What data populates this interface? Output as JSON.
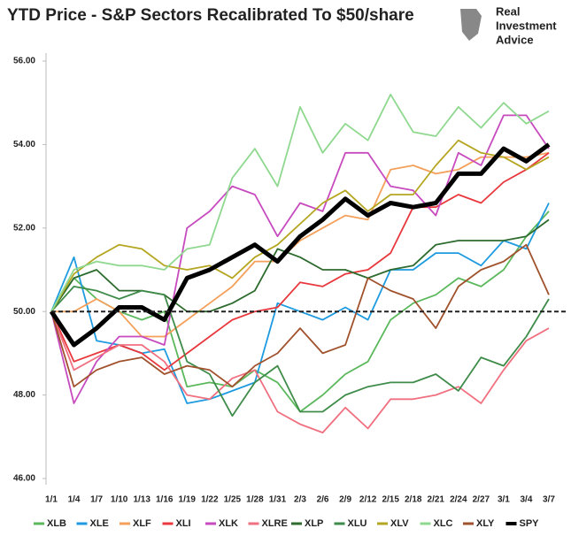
{
  "chart_data": {
    "type": "line",
    "title": "YTD Price - S&P Sectors Recalibrated To $50/share",
    "logo_text": [
      "Real",
      "Investment",
      "Advice"
    ],
    "categories": [
      "1/1",
      "1/4",
      "1/7",
      "1/10",
      "1/13",
      "1/16",
      "1/19",
      "1/22",
      "1/25",
      "1/28",
      "1/31",
      "2/3",
      "2/6",
      "2/9",
      "2/12",
      "2/15",
      "2/18",
      "2/21",
      "2/24",
      "2/27",
      "3/1",
      "3/4",
      "3/7"
    ],
    "ylim": [
      46,
      56
    ],
    "yticks": [
      {
        "value": 46,
        "label": "46.00"
      },
      {
        "value": 48,
        "label": "48.00"
      },
      {
        "value": 50,
        "label": "50.00"
      },
      {
        "value": 52,
        "label": "52.00"
      },
      {
        "value": 54,
        "label": "54.00"
      },
      {
        "value": 56,
        "label": "56.00"
      }
    ],
    "reference_line": 50,
    "grid": false,
    "legend": "bottom",
    "series": [
      {
        "name": "XLB",
        "color": "#5cb85c",
        "values": [
          50,
          50.8,
          50.3,
          50.0,
          49.8,
          50.0,
          48.2,
          48.3,
          48.2,
          48.6,
          48.3,
          47.6,
          48.0,
          48.5,
          48.8,
          49.8,
          50.2,
          50.4,
          50.8,
          50.6,
          51.0,
          51.8,
          52.4
        ]
      },
      {
        "name": "XLE",
        "color": "#1e9be0",
        "values": [
          50,
          51.3,
          49.3,
          49.2,
          49.0,
          49.1,
          47.8,
          47.9,
          48.1,
          48.3,
          50.2,
          50.0,
          49.8,
          50.1,
          49.8,
          51.0,
          51.0,
          51.4,
          51.4,
          51.1,
          51.7,
          51.5,
          52.6
        ]
      },
      {
        "name": "XLF",
        "color": "#f4a05a",
        "values": [
          50,
          50.0,
          50.3,
          50.0,
          49.4,
          49.4,
          49.8,
          50.2,
          50.6,
          51.2,
          51.2,
          51.7,
          52.0,
          52.3,
          52.2,
          53.4,
          53.5,
          53.3,
          53.4,
          53.7,
          53.7,
          53.7,
          53.8
        ]
      },
      {
        "name": "XLI",
        "color": "#e8383d",
        "values": [
          50,
          48.8,
          49.0,
          49.2,
          49.0,
          48.6,
          49.0,
          49.4,
          49.8,
          50.0,
          50.1,
          50.7,
          50.6,
          50.9,
          51.0,
          51.4,
          52.5,
          52.5,
          52.8,
          52.6,
          53.1,
          53.4,
          53.8
        ]
      },
      {
        "name": "XLK",
        "color": "#c74bbf",
        "values": [
          50,
          47.8,
          48.8,
          49.4,
          49.4,
          49.2,
          52.0,
          52.4,
          53.0,
          52.8,
          51.8,
          52.6,
          52.4,
          53.8,
          53.8,
          53.0,
          52.9,
          52.3,
          53.8,
          53.5,
          54.7,
          54.7,
          53.9
        ]
      },
      {
        "name": "XLRE",
        "color": "#f07080",
        "values": [
          50,
          48.6,
          48.9,
          49.2,
          49.2,
          48.8,
          48.0,
          47.9,
          48.4,
          48.6,
          47.6,
          47.3,
          47.1,
          47.7,
          47.2,
          47.9,
          47.9,
          48.0,
          48.2,
          47.8,
          48.6,
          49.3,
          49.6
        ]
      },
      {
        "name": "XLP",
        "color": "#2e6b2e",
        "values": [
          50,
          50.8,
          51.0,
          50.5,
          50.5,
          50.4,
          50.0,
          50.0,
          50.2,
          50.5,
          51.5,
          51.3,
          51.0,
          51.0,
          50.8,
          51.0,
          51.1,
          51.6,
          51.7,
          51.7,
          51.7,
          51.8,
          52.2
        ]
      },
      {
        "name": "XLU",
        "color": "#3f8c4a",
        "values": [
          50,
          50.6,
          50.5,
          50.3,
          50.5,
          50.4,
          48.8,
          48.5,
          47.5,
          48.3,
          48.7,
          47.6,
          47.6,
          48.0,
          48.2,
          48.3,
          48.3,
          48.5,
          48.1,
          48.9,
          48.7,
          49.4,
          50.3
        ]
      },
      {
        "name": "XLV",
        "color": "#b5a621",
        "values": [
          50,
          50.9,
          51.3,
          51.6,
          51.5,
          51.1,
          51.0,
          51.1,
          50.8,
          51.3,
          51.6,
          52.1,
          52.6,
          52.9,
          52.4,
          52.8,
          52.8,
          53.5,
          54.1,
          53.8,
          53.7,
          53.4,
          53.7
        ]
      },
      {
        "name": "XLC",
        "color": "#8fd88f",
        "values": [
          50,
          51.0,
          51.2,
          51.1,
          51.1,
          51.0,
          51.5,
          51.6,
          53.2,
          53.9,
          53.0,
          54.9,
          53.8,
          54.5,
          54.1,
          55.2,
          54.3,
          54.2,
          54.9,
          54.4,
          55.0,
          54.5,
          54.8
        ]
      },
      {
        "name": "XLY",
        "color": "#a0522d",
        "values": [
          50,
          48.2,
          48.6,
          48.8,
          48.9,
          48.5,
          48.7,
          48.6,
          48.2,
          48.7,
          49.0,
          49.6,
          49.0,
          49.2,
          50.8,
          50.5,
          50.3,
          49.6,
          50.6,
          51.0,
          51.2,
          51.6,
          50.4
        ]
      },
      {
        "name": "SPY",
        "color": "#000000",
        "values": [
          50,
          49.2,
          49.6,
          50.1,
          50.1,
          49.8,
          50.8,
          51.0,
          51.3,
          51.6,
          51.2,
          51.8,
          52.2,
          52.7,
          52.3,
          52.6,
          52.5,
          52.6,
          53.3,
          53.3,
          53.9,
          53.6,
          54.0
        ]
      }
    ]
  }
}
